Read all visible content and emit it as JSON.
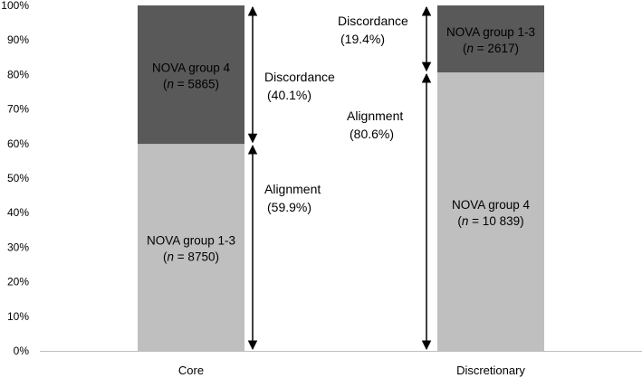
{
  "chart_data": {
    "type": "stacked-bar-100",
    "title": "",
    "xlabel": "",
    "ylabel": "",
    "ylim": [
      0,
      100
    ],
    "yticks": [
      "0%",
      "10%",
      "20%",
      "30%",
      "40%",
      "50%",
      "60%",
      "70%",
      "80%",
      "90%",
      "100%"
    ],
    "categories": [
      "Core",
      "Discretionary"
    ],
    "bars": [
      {
        "category": "Core",
        "segments": [
          {
            "value": 59.9,
            "label": "NOVA group 1-3",
            "n": "8750",
            "color": "#bfbfbf",
            "text_color": "#000000"
          },
          {
            "value": 40.1,
            "label": "NOVA group 4",
            "n": "5865",
            "color": "#595959",
            "text_color": "#000000"
          }
        ]
      },
      {
        "category": "Discretionary",
        "segments": [
          {
            "value": 80.6,
            "label": "NOVA group 4",
            "n": "10 839",
            "color": "#bfbfbf",
            "text_color": "#000000"
          },
          {
            "value": 19.4,
            "label": "NOVA group 1-3",
            "n": "2617",
            "color": "#595959",
            "text_color": "#000000"
          }
        ]
      }
    ],
    "annotations": [
      {
        "bar": 0,
        "lower": 0,
        "upper": 59.9,
        "name": "Alignment",
        "value": "(59.9%)"
      },
      {
        "bar": 0,
        "lower": 59.9,
        "upper": 100,
        "name": "Discordance",
        "value": "(40.1%)"
      },
      {
        "bar": 1,
        "lower": 0,
        "upper": 80.6,
        "name": "Alignment",
        "value": "(80.6%)"
      },
      {
        "bar": 1,
        "lower": 80.6,
        "upper": 100,
        "name": "Discordance",
        "value": "(19.4%)"
      }
    ],
    "n_prefix": "n",
    "n_equals": " = ",
    "axis_color": "#bfbfbf",
    "grid": false,
    "legend": "none"
  }
}
